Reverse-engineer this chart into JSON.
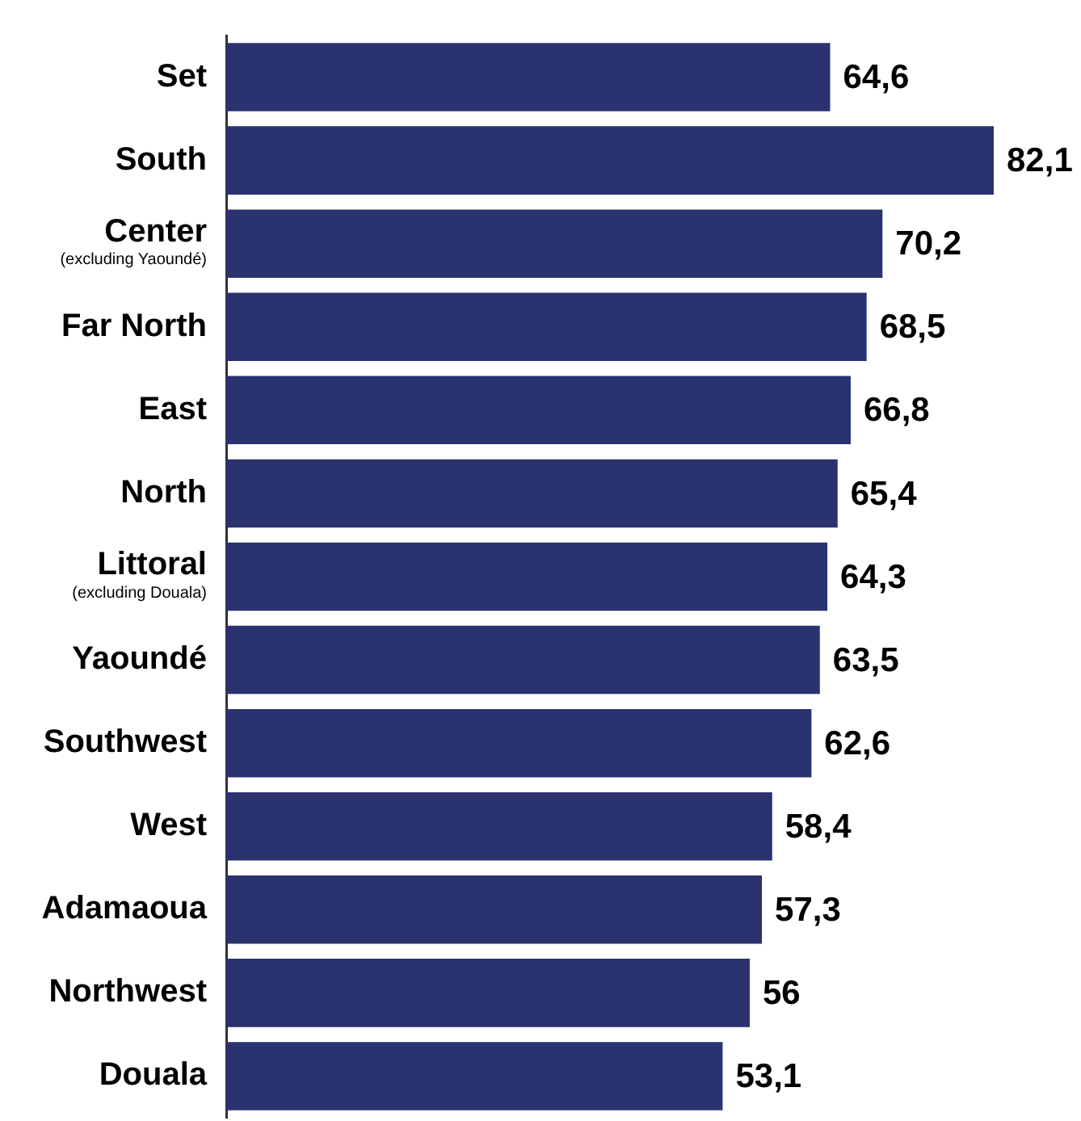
{
  "chart_data": {
    "type": "bar",
    "orientation": "horizontal",
    "categories": [
      "Set",
      "South",
      "Center\n(excluding Yaoundé)",
      "Far North",
      "East",
      "North",
      "Littoral\n(excluding Douala)",
      "Yaoundé",
      "Southwest",
      "West",
      "Adamaoua",
      "Northwest",
      "Douala"
    ],
    "values": [
      64.6,
      82.1,
      70.2,
      68.5,
      66.8,
      65.4,
      64.3,
      63.5,
      62.6,
      58.4,
      57.3,
      56,
      53.1
    ],
    "value_labels": [
      "64,6",
      "82,1",
      "70,2",
      "68,5",
      "66,8",
      "65,4",
      "64,3",
      "63,5",
      "62,6",
      "58,4",
      "57,3",
      "56",
      "53,1"
    ],
    "color": "#2b3270",
    "tick_labels": "y",
    "legend": false
  }
}
